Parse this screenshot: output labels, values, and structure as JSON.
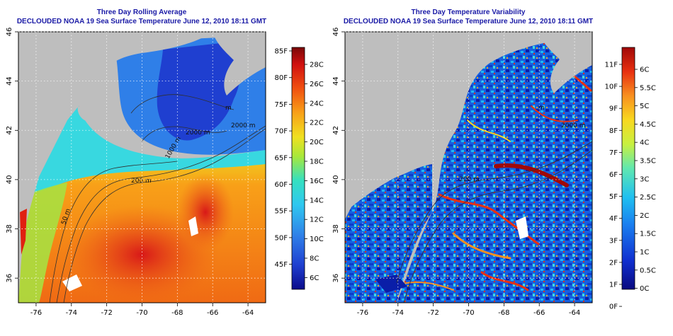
{
  "left_panel": {
    "title_line1": "Three Day Rolling Average",
    "title_line2": "DECLOUDED NOAA 19 Sea Surface Temperature June 12, 2010 18:11 GMT",
    "colorbar_f_labels": [
      "85F",
      "80F",
      "75F",
      "70F",
      "65F",
      "60F",
      "55F",
      "50F",
      "45F"
    ],
    "colorbar_c_labels": [
      "28C",
      "26C",
      "24C",
      "22C",
      "20C",
      "18C",
      "16C",
      "14C",
      "12C",
      "10C",
      "8C",
      "6C"
    ],
    "contour_labels": [
      "2000 m",
      "200 m",
      "50 m",
      "1000 m",
      "2000 m",
      "m"
    ]
  },
  "right_panel": {
    "title_line1": "Three Day Temperature Variability",
    "title_line2": "DECLOUDED NOAA 19 Sea Surface Temperature June 12, 2010 18:11 GMT",
    "colorbar_f_labels": [
      "11F",
      "10F",
      "9F",
      "8F",
      "7F",
      "6F",
      "5F",
      "4F",
      "3F",
      "2F",
      "1F",
      "0F"
    ],
    "colorbar_c_labels": [
      "6C",
      "5.5C",
      "5C",
      "4.5C",
      "4C",
      "3.5C",
      "3C",
      "2.5C",
      "2C",
      "1.5C",
      "1C",
      "0.5C",
      "0C"
    ],
    "contour_labels": [
      "200 m",
      "2000 m",
      "m"
    ]
  },
  "axes": {
    "lon_ticks": [
      "-76",
      "-74",
      "-72",
      "-70",
      "-68",
      "-66",
      "-64"
    ],
    "lat_ticks": [
      "46",
      "44",
      "42",
      "40",
      "38",
      "36"
    ]
  },
  "colors": {
    "land": "#bebebe",
    "title": "#1a1aa6",
    "sst_scale": [
      "#0b0b8a",
      "#1f3fd0",
      "#2f7fe8",
      "#2fc8f0",
      "#35e0c0",
      "#a8e83a",
      "#f0e020",
      "#f8a018",
      "#f05010",
      "#d01010",
      "#7a0808"
    ],
    "var_scale": [
      "#0a0a80",
      "#1030d0",
      "#1a80f0",
      "#20c0f0",
      "#60e8b0",
      "#c8f040",
      "#f8d820",
      "#f89020",
      "#e83010",
      "#a00808"
    ]
  }
}
